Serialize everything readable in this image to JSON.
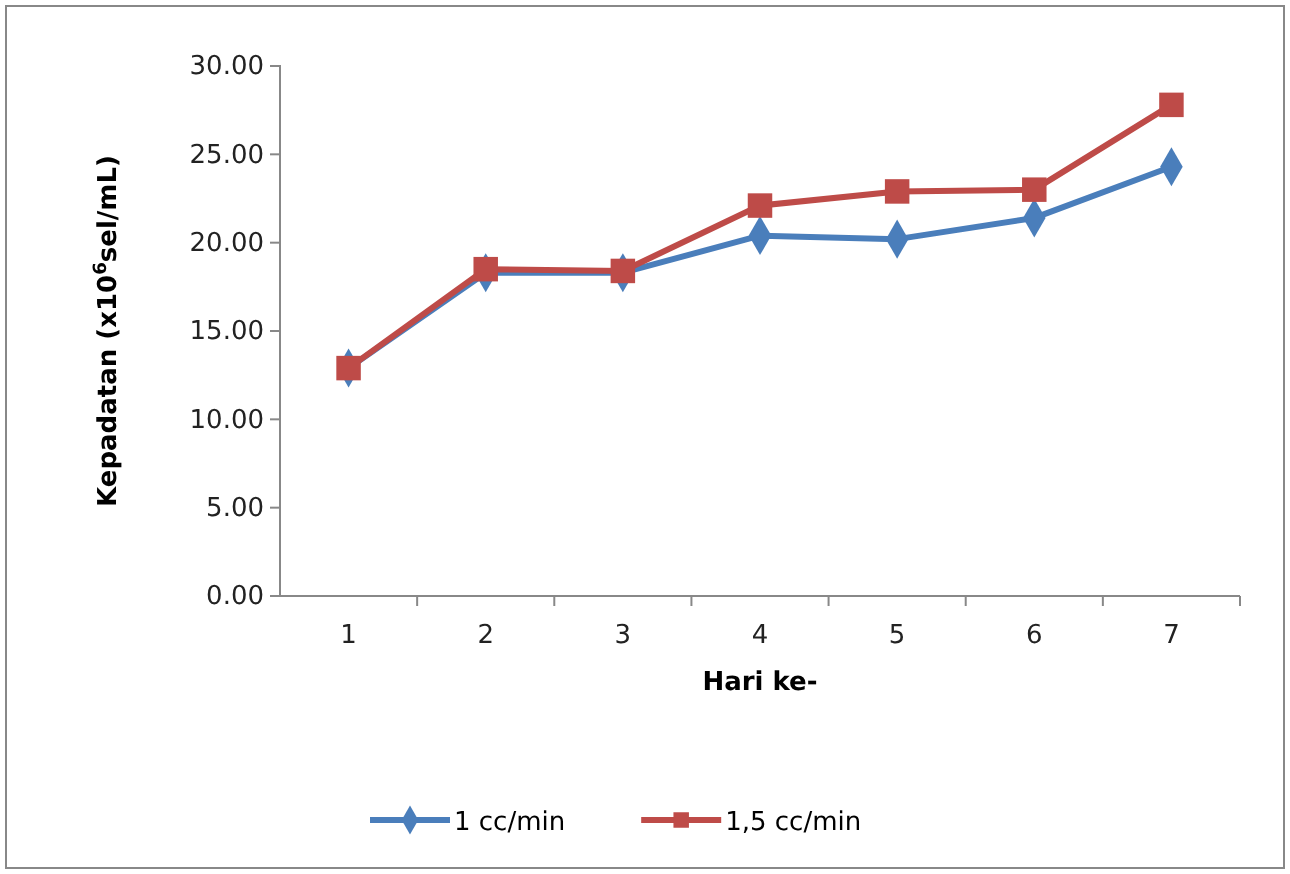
{
  "chart_data": {
    "type": "line",
    "xlabel": "Hari ke-",
    "ylabel": "Kepadatan (x10$^{6}$sel/mL)",
    "categories": [
      "1",
      "2",
      "3",
      "4",
      "5",
      "6",
      "7"
    ],
    "series": [
      {
        "name": "1 cc/min",
        "color": "#4a7ebb",
        "marker": "diamond",
        "values": [
          12.9,
          18.3,
          18.3,
          20.4,
          20.2,
          21.4,
          24.3
        ]
      },
      {
        "name": "1,5 cc/min",
        "color": "#be4b48",
        "marker": "square",
        "values": [
          12.9,
          18.5,
          18.4,
          22.1,
          22.9,
          23.0,
          27.8
        ]
      }
    ],
    "ylim": [
      0,
      30
    ],
    "yticks": [
      {
        "value": 0,
        "label": "0.00"
      },
      {
        "value": 5,
        "label": "5.00"
      },
      {
        "value": 10,
        "label": "10.00"
      },
      {
        "value": 15,
        "label": "15.00"
      },
      {
        "value": 20,
        "label": "20.00"
      },
      {
        "value": 25,
        "label": "25.00"
      },
      {
        "value": 30,
        "label": "30.00"
      }
    ],
    "grid": false,
    "legend": "bottom",
    "line_style": "solid"
  }
}
